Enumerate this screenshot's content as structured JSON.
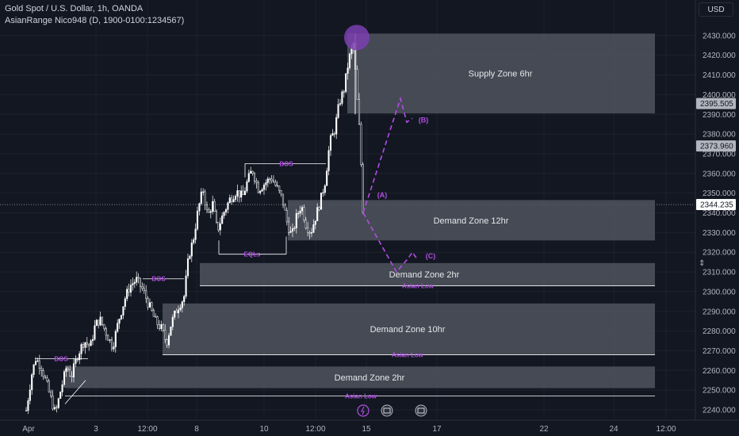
{
  "header": {
    "title": "Gold Spot / U.S. Dollar, 1h, OANDA",
    "indicator": "AsianRange Nico948 (D, 1900-0100:1234567)",
    "currency": "USD"
  },
  "colors": {
    "background": "#131722",
    "candle": "#ffffff",
    "zone_fill": "#50535e",
    "accent": "#b24ee3",
    "grid": "#1e222d"
  },
  "chart_data": {
    "type": "candlestick",
    "symbol": "XAUUSD",
    "timeframe": "1h",
    "ylim": [
      2235,
      2441
    ],
    "y_ticks": [
      "2240.000",
      "2250.000",
      "2260.000",
      "2270.000",
      "2280.000",
      "2290.000",
      "2300.000",
      "2310.000",
      "2320.000",
      "2330.000",
      "2340.000",
      "2350.000",
      "2360.000",
      "2370.000",
      "2380.000",
      "2390.000",
      "2400.000",
      "2410.000",
      "2420.000",
      "2430.000"
    ],
    "x_labels": [
      "Apr",
      "3",
      "12:00",
      "8",
      "10",
      "12:00",
      "15",
      "17",
      "22",
      "24",
      "12:00"
    ],
    "price_badges": [
      {
        "value": "2395.505",
        "kind": "level"
      },
      {
        "value": "2373.960",
        "kind": "level"
      },
      {
        "value": "2344.235",
        "kind": "last"
      }
    ],
    "zones": [
      {
        "label": "Supply Zone 6hr",
        "top": 2431.0,
        "bottom": 2390.5
      },
      {
        "label": "Demand Zone 12hr",
        "top": 2346.5,
        "bottom": 2326.0
      },
      {
        "label": "Demand Zone 2hr",
        "top": 2314.5,
        "bottom": 2303.0
      },
      {
        "label": "Demand Zone 10hr",
        "top": 2294.0,
        "bottom": 2268.0
      },
      {
        "label": "Demand Zone 2hr",
        "top": 2262.0,
        "bottom": 2251.0
      }
    ],
    "structure_labels": [
      {
        "text": "BOS",
        "price": 2365.0
      },
      {
        "text": "BOS",
        "price": 2306.5
      },
      {
        "text": "BOS",
        "price": 2266.0
      },
      {
        "text": "EQLs",
        "price": 2319.0
      },
      {
        "text": "Asian Low",
        "price": 2303.0
      },
      {
        "text": "Asian Low",
        "price": 2268.0
      },
      {
        "text": "Asian Low",
        "price": 2247.0
      }
    ],
    "projection": {
      "labels": [
        "(A)",
        "(B)",
        "(C)"
      ]
    }
  }
}
